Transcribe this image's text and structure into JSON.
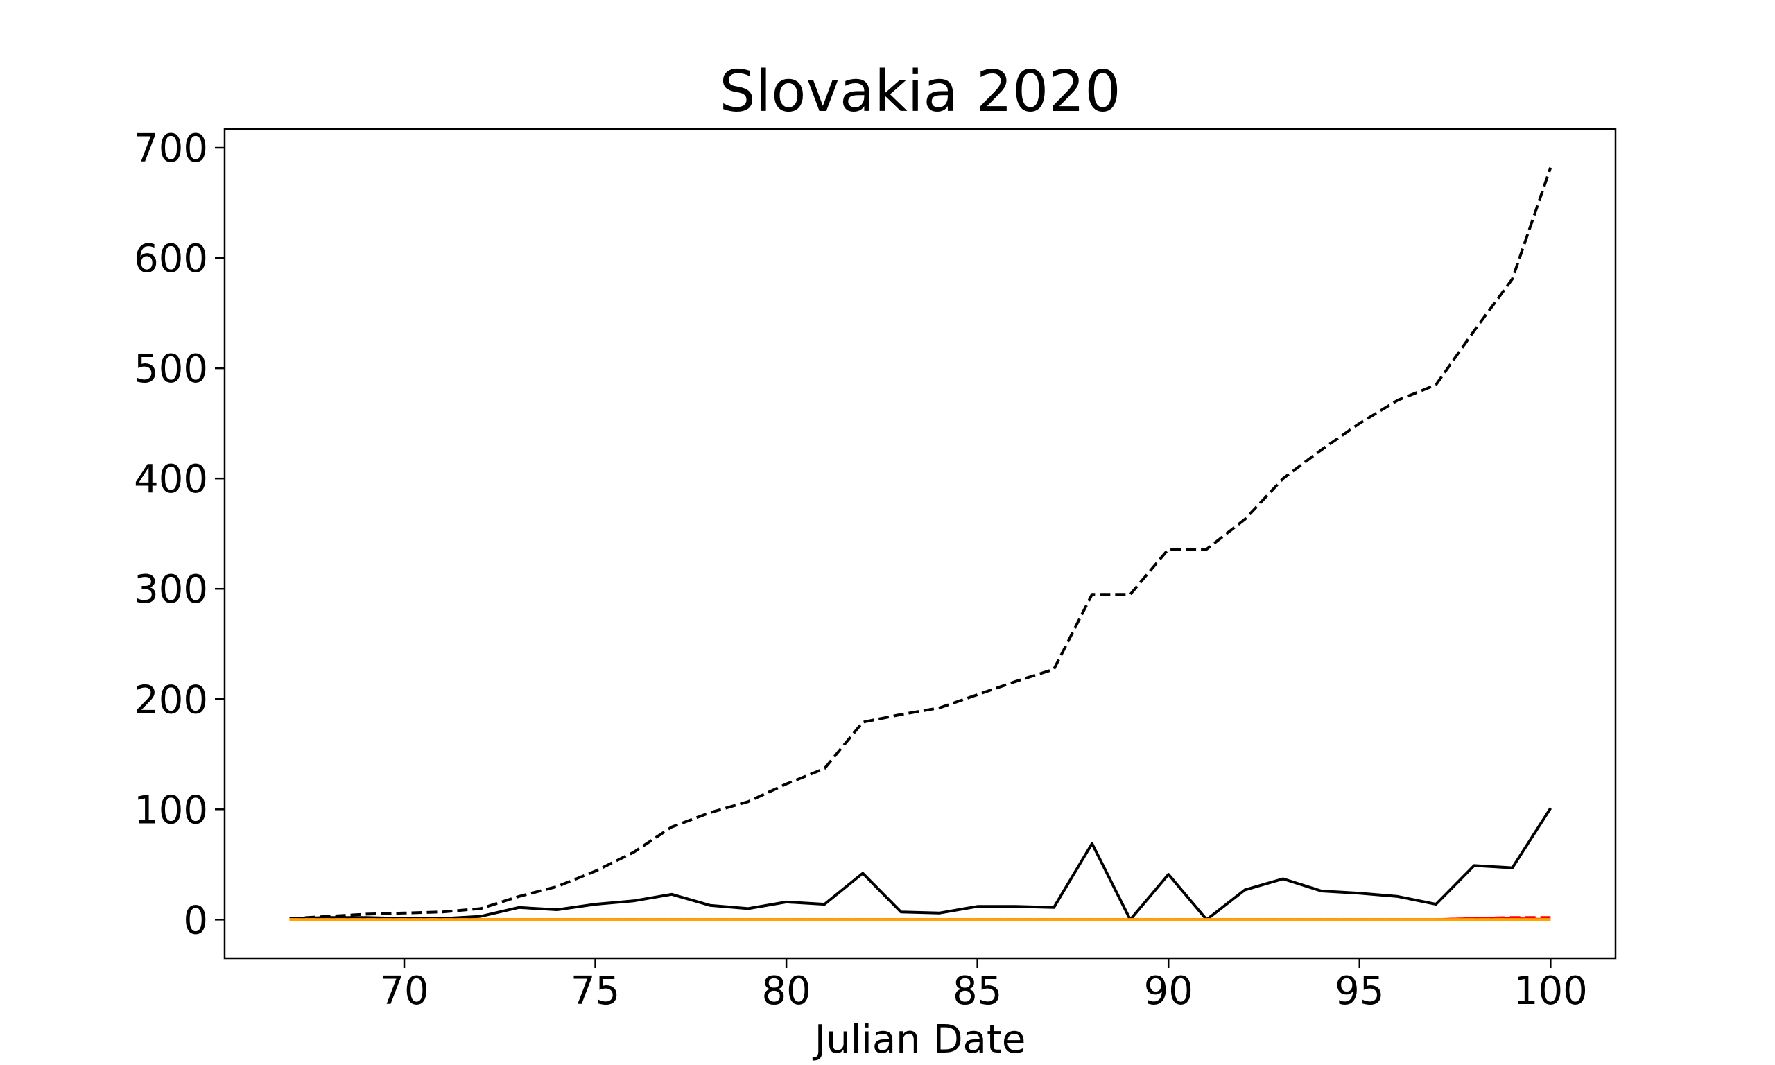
{
  "chart_data": {
    "type": "line",
    "title": "Slovakia 2020",
    "xlabel": "Julian Date",
    "ylabel": "",
    "xlim": [
      65.3,
      101.7
    ],
    "ylim": [
      -35,
      717
    ],
    "grid": false,
    "x_ticks": [
      70,
      75,
      80,
      85,
      90,
      95,
      100
    ],
    "y_ticks": [
      0,
      100,
      200,
      300,
      400,
      500,
      600,
      700
    ],
    "x": [
      67,
      68,
      69,
      70,
      71,
      72,
      73,
      74,
      75,
      76,
      77,
      78,
      79,
      80,
      81,
      82,
      83,
      84,
      85,
      86,
      87,
      88,
      89,
      90,
      91,
      92,
      93,
      94,
      95,
      96,
      97,
      98,
      99,
      100
    ],
    "series": [
      {
        "color": "#000000",
        "dash": "dashed",
        "values": [
          1,
          3,
          5,
          6,
          7,
          10,
          21,
          30,
          44,
          61,
          84,
          97,
          107,
          123,
          137,
          179,
          186,
          192,
          204,
          216,
          227,
          295,
          295,
          336,
          336,
          363,
          400,
          426,
          450,
          471,
          485,
          534,
          581,
          682
        ]
      },
      {
        "color": "#000000",
        "dash": "solid",
        "values": [
          1,
          2,
          2,
          1,
          1,
          3,
          11,
          9,
          14,
          17,
          23,
          13,
          10,
          16,
          14,
          42,
          7,
          6,
          12,
          12,
          11,
          69,
          0,
          41,
          0,
          27,
          37,
          26,
          24,
          21,
          14,
          49,
          47,
          101
        ]
      },
      {
        "color": "#ff0000",
        "dash": "dashed",
        "values": [
          0,
          0,
          0,
          0,
          0,
          0,
          0,
          0,
          0,
          0,
          0,
          0,
          0,
          0,
          0,
          0,
          0,
          0,
          0,
          0,
          0,
          0,
          0,
          0,
          0,
          0,
          0,
          0,
          0,
          0,
          0,
          1,
          2,
          2
        ]
      },
      {
        "color": "#ff0000",
        "dash": "solid",
        "values": [
          0,
          0,
          0,
          0,
          0,
          0,
          0,
          0,
          0,
          0,
          0,
          0,
          0,
          0,
          0,
          0,
          0,
          0,
          0,
          0,
          0,
          0,
          0,
          0,
          0,
          0,
          0,
          0,
          0,
          0,
          0,
          1,
          1,
          0
        ]
      },
      {
        "color": "#ffa500",
        "dash": "dashed",
        "values": [
          0,
          0,
          0,
          0,
          0,
          0,
          0,
          0,
          0,
          0,
          0,
          0,
          0,
          0,
          0,
          0,
          0,
          0,
          0,
          0,
          0,
          0,
          0,
          0,
          0,
          0,
          0,
          0,
          0,
          0,
          0,
          0,
          0,
          0
        ]
      },
      {
        "color": "#ffa500",
        "dash": "solid",
        "values": [
          0,
          0,
          0,
          0,
          0,
          0,
          0,
          0,
          0,
          0,
          0,
          0,
          0,
          0,
          0,
          0,
          0,
          0,
          0,
          0,
          0,
          0,
          0,
          0,
          0,
          0,
          0,
          0,
          0,
          0,
          0,
          0,
          0,
          0
        ]
      }
    ]
  }
}
